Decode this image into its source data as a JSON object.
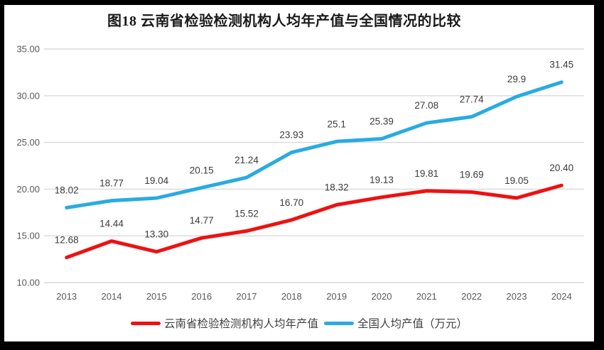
{
  "title": "图18 云南省检验检测机构人均年产值与全国情况的比较",
  "chart_data": {
    "type": "line",
    "title": "图18 云南省检验检测机构人均年产值与全国情况的比较",
    "categories": [
      "2013",
      "2014",
      "2015",
      "2016",
      "2017",
      "2018",
      "2019",
      "2020",
      "2021",
      "2022",
      "2023",
      "2024"
    ],
    "series": [
      {
        "name": "云南省检验检测机构人均年产值",
        "color": "#EE1111",
        "values": [
          12.68,
          14.44,
          13.3,
          14.77,
          15.52,
          16.7,
          18.32,
          19.13,
          19.81,
          19.69,
          19.05,
          20.4
        ],
        "labels": [
          "12.68",
          "14.44",
          "13.30",
          "14.77",
          "15.52",
          "16.70",
          "18.32",
          "19.13",
          "19.81",
          "19.69",
          "19.05",
          "20.40"
        ]
      },
      {
        "name": "全国人均产值（万元）",
        "color": "#29ABE2",
        "values": [
          18.02,
          18.77,
          19.04,
          20.15,
          21.24,
          23.93,
          25.1,
          25.39,
          27.08,
          27.74,
          29.9,
          31.45
        ],
        "labels": [
          "18.02",
          "18.77",
          "19.04",
          "20.15",
          "21.24",
          "23.93",
          "25.1",
          "25.39",
          "27.08",
          "27.74",
          "29.9",
          "31.45"
        ]
      }
    ],
    "xlabel": "",
    "ylabel": "",
    "ylim": [
      10,
      35
    ],
    "yticks": [
      "35.00",
      "30.00",
      "25.00",
      "20.00",
      "15.00",
      "10.00"
    ],
    "grid": true,
    "legend_position": "bottom"
  },
  "colors": {
    "gridline": "#D9D9D9",
    "tick_text": "#595959",
    "data_label": "#3B3B3B",
    "title_text": "#1A1A1A",
    "legend_text": "#404040",
    "frame": "#000000",
    "background": "#FFFFFF"
  }
}
